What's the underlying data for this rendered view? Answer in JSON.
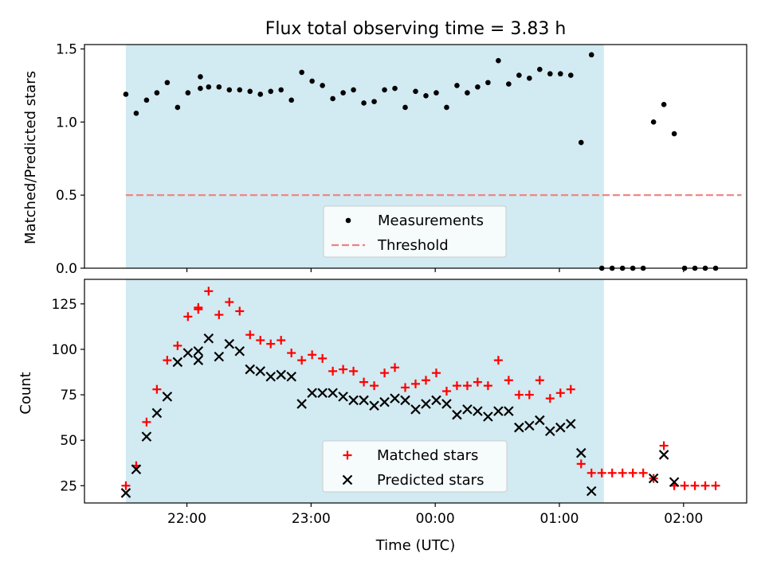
{
  "chart_data": {
    "title": "Flux total observing time = 3.83 h",
    "type": "scatter",
    "time_axis": {
      "label": "Time (UTC)",
      "ticks": [
        "22:00",
        "23:00",
        "00:00",
        "01:00",
        "02:00"
      ],
      "tick_values_min": [
        1320,
        1380,
        1440,
        1500,
        1560
      ],
      "range_min": [
        1270.5,
        1590.5
      ]
    },
    "span_min": [
      1290.5,
      1521.5
    ],
    "colors": {
      "span": "#add8e6",
      "measurements": "#000000",
      "threshold": "#f08080",
      "matched": "#ff0000",
      "predicted": "#000000"
    },
    "panels": [
      {
        "id": "ratio",
        "ylabel": "Matched/Predicted stars",
        "ylim": [
          0,
          1.53
        ],
        "yticks": [
          "0.0",
          "0.5",
          "1.0",
          "1.5"
        ],
        "ytick_values": [
          0,
          0.5,
          1.0,
          1.5
        ],
        "threshold": 0.5,
        "threshold_range_min": [
          1290.5,
          1588
        ],
        "legend": {
          "position": "lower center",
          "items": [
            "Measurements",
            "Threshold"
          ]
        },
        "series": [
          {
            "name": "Measurements",
            "marker": "dot",
            "points": [
              [
                1290.5,
                1.19
              ],
              [
                1295.5,
                1.06
              ],
              [
                1300.5,
                1.15
              ],
              [
                1305.5,
                1.2
              ],
              [
                1310.5,
                1.27
              ],
              [
                1315.5,
                1.1
              ],
              [
                1320.5,
                1.2
              ],
              [
                1326.5,
                1.31
              ],
              [
                1326.5,
                1.23
              ],
              [
                1330.5,
                1.24
              ],
              [
                1335.5,
                1.24
              ],
              [
                1340.5,
                1.22
              ],
              [
                1345.5,
                1.22
              ],
              [
                1350.5,
                1.21
              ],
              [
                1355.5,
                1.19
              ],
              [
                1360.5,
                1.21
              ],
              [
                1365.5,
                1.22
              ],
              [
                1370.5,
                1.15
              ],
              [
                1375.5,
                1.34
              ],
              [
                1380.5,
                1.28
              ],
              [
                1385.5,
                1.25
              ],
              [
                1390.5,
                1.16
              ],
              [
                1395.5,
                1.2
              ],
              [
                1400.5,
                1.22
              ],
              [
                1405.5,
                1.13
              ],
              [
                1410.5,
                1.14
              ],
              [
                1415.5,
                1.22
              ],
              [
                1420.5,
                1.23
              ],
              [
                1425.5,
                1.1
              ],
              [
                1430.5,
                1.21
              ],
              [
                1435.5,
                1.18
              ],
              [
                1440.5,
                1.2
              ],
              [
                1445.5,
                1.1
              ],
              [
                1450.5,
                1.25
              ],
              [
                1455.5,
                1.2
              ],
              [
                1460.5,
                1.24
              ],
              [
                1465.5,
                1.27
              ],
              [
                1470.5,
                1.42
              ],
              [
                1475.5,
                1.26
              ],
              [
                1480.5,
                1.32
              ],
              [
                1485.5,
                1.3
              ],
              [
                1490.5,
                1.36
              ],
              [
                1495.5,
                1.33
              ],
              [
                1500.5,
                1.33
              ],
              [
                1505.5,
                1.32
              ],
              [
                1510.5,
                0.86
              ],
              [
                1515.5,
                1.46
              ],
              [
                1520.5,
                0
              ],
              [
                1525.5,
                0
              ],
              [
                1530.5,
                0
              ],
              [
                1535.5,
                0
              ],
              [
                1540.5,
                0
              ],
              [
                1545.5,
                1.0
              ],
              [
                1550.5,
                1.12
              ],
              [
                1555.5,
                0.92
              ],
              [
                1560.5,
                0
              ],
              [
                1565.5,
                0
              ],
              [
                1570.5,
                0
              ],
              [
                1575.5,
                0
              ]
            ]
          }
        ]
      },
      {
        "id": "count",
        "ylabel": "Count",
        "ylim": [
          15.5,
          138.5
        ],
        "yticks": [
          "25",
          "50",
          "75",
          "100",
          "125"
        ],
        "ytick_values": [
          25,
          50,
          75,
          100,
          125
        ],
        "legend": {
          "position": "lower center",
          "items": [
            "Matched stars",
            "Predicted stars"
          ]
        },
        "series": [
          {
            "name": "Matched stars",
            "marker": "plus",
            "points": [
              [
                1290.5,
                25
              ],
              [
                1295.5,
                36
              ],
              [
                1300.5,
                60
              ],
              [
                1305.5,
                78
              ],
              [
                1310.5,
                94
              ],
              [
                1315.5,
                102
              ],
              [
                1320.5,
                118
              ],
              [
                1325.5,
                122
              ],
              [
                1325.5,
                123
              ],
              [
                1330.5,
                132
              ],
              [
                1335.5,
                119
              ],
              [
                1340.5,
                126
              ],
              [
                1345.5,
                121
              ],
              [
                1350.5,
                108
              ],
              [
                1355.5,
                105
              ],
              [
                1360.5,
                103
              ],
              [
                1365.5,
                105
              ],
              [
                1370.5,
                98
              ],
              [
                1375.5,
                94
              ],
              [
                1380.5,
                97
              ],
              [
                1385.5,
                95
              ],
              [
                1390.5,
                88
              ],
              [
                1395.5,
                89
              ],
              [
                1400.5,
                88
              ],
              [
                1405.5,
                82
              ],
              [
                1410.5,
                80
              ],
              [
                1415.5,
                87
              ],
              [
                1420.5,
                90
              ],
              [
                1425.5,
                79
              ],
              [
                1430.5,
                81
              ],
              [
                1435.5,
                83
              ],
              [
                1440.5,
                87
              ],
              [
                1445.5,
                77
              ],
              [
                1450.5,
                80
              ],
              [
                1455.5,
                80
              ],
              [
                1460.5,
                82
              ],
              [
                1465.5,
                80
              ],
              [
                1470.5,
                94
              ],
              [
                1475.5,
                83
              ],
              [
                1480.5,
                75
              ],
              [
                1485.5,
                75
              ],
              [
                1490.5,
                83
              ],
              [
                1495.5,
                73
              ],
              [
                1500.5,
                76
              ],
              [
                1505.5,
                78
              ],
              [
                1510.5,
                37
              ],
              [
                1515.5,
                32
              ],
              [
                1520.5,
                32
              ],
              [
                1525.5,
                32
              ],
              [
                1530.5,
                32
              ],
              [
                1535.5,
                32
              ],
              [
                1540.5,
                32
              ],
              [
                1545.5,
                29
              ],
              [
                1550.5,
                47
              ],
              [
                1555.5,
                25
              ],
              [
                1560.5,
                25
              ],
              [
                1565.5,
                25
              ],
              [
                1570.5,
                25
              ],
              [
                1575.5,
                25
              ]
            ]
          },
          {
            "name": "Predicted stars",
            "marker": "x",
            "points": [
              [
                1290.5,
                21
              ],
              [
                1295.5,
                34
              ],
              [
                1300.5,
                52
              ],
              [
                1305.5,
                65
              ],
              [
                1310.5,
                74
              ],
              [
                1315.5,
                93
              ],
              [
                1320.5,
                98
              ],
              [
                1325.5,
                99
              ],
              [
                1325.5,
                94
              ],
              [
                1330.5,
                106
              ],
              [
                1335.5,
                96
              ],
              [
                1340.5,
                103
              ],
              [
                1345.5,
                99
              ],
              [
                1350.5,
                89
              ],
              [
                1355.5,
                88
              ],
              [
                1360.5,
                85
              ],
              [
                1365.5,
                86
              ],
              [
                1370.5,
                85
              ],
              [
                1375.5,
                70
              ],
              [
                1380.5,
                76
              ],
              [
                1385.5,
                76
              ],
              [
                1390.5,
                76
              ],
              [
                1395.5,
                74
              ],
              [
                1400.5,
                72
              ],
              [
                1405.5,
                72
              ],
              [
                1410.5,
                69
              ],
              [
                1415.5,
                71
              ],
              [
                1420.5,
                73
              ],
              [
                1425.5,
                72
              ],
              [
                1430.5,
                67
              ],
              [
                1435.5,
                70
              ],
              [
                1440.5,
                72
              ],
              [
                1445.5,
                70
              ],
              [
                1450.5,
                64
              ],
              [
                1455.5,
                67
              ],
              [
                1460.5,
                66
              ],
              [
                1465.5,
                63
              ],
              [
                1470.5,
                66
              ],
              [
                1475.5,
                66
              ],
              [
                1480.5,
                57
              ],
              [
                1485.5,
                58
              ],
              [
                1490.5,
                61
              ],
              [
                1495.5,
                55
              ],
              [
                1500.5,
                57
              ],
              [
                1505.5,
                59
              ],
              [
                1510.5,
                43
              ],
              [
                1515.5,
                22
              ],
              [
                1545.5,
                29
              ],
              [
                1550.5,
                42
              ],
              [
                1555.5,
                27
              ]
            ]
          }
        ]
      }
    ]
  }
}
